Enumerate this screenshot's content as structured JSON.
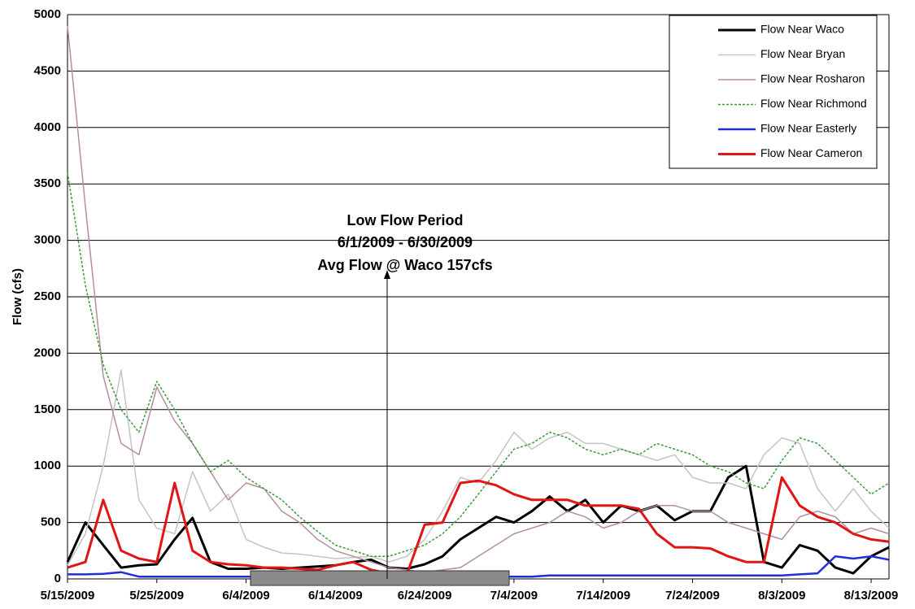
{
  "chart_data": {
    "type": "line",
    "y_label": "Flow (cfs)",
    "annotation": [
      "Low Flow Period",
      "6/1/2009 - 6/30/2009",
      "Avg Flow @ Waco 157cfs"
    ],
    "x": [
      "5/15/2009",
      "5/17/2009",
      "5/19/2009",
      "5/21/2009",
      "5/23/2009",
      "5/25/2009",
      "5/27/2009",
      "5/29/2009",
      "5/31/2009",
      "6/2/2009",
      "6/4/2009",
      "6/6/2009",
      "6/8/2009",
      "6/10/2009",
      "6/12/2009",
      "6/14/2009",
      "6/16/2009",
      "6/18/2009",
      "6/20/2009",
      "6/22/2009",
      "6/24/2009",
      "6/26/2009",
      "6/28/2009",
      "6/30/2009",
      "7/2/2009",
      "7/4/2009",
      "7/6/2009",
      "7/8/2009",
      "7/10/2009",
      "7/12/2009",
      "7/14/2009",
      "7/16/2009",
      "7/18/2009",
      "7/20/2009",
      "7/22/2009",
      "7/24/2009",
      "7/26/2009",
      "7/28/2009",
      "7/30/2009",
      "8/1/2009",
      "8/3/2009",
      "8/5/2009",
      "8/7/2009",
      "8/9/2009",
      "8/11/2009",
      "8/13/2009",
      "8/15/2009"
    ],
    "xlim": [
      "5/15/2009",
      "8/15/2009"
    ],
    "xticks": [
      "5/15/2009",
      "5/25/2009",
      "6/4/2009",
      "6/14/2009",
      "6/24/2009",
      "7/4/2009",
      "7/14/2009",
      "7/24/2009",
      "8/3/2009",
      "8/13/2009"
    ],
    "ylim": [
      0,
      5000
    ],
    "yticks": [
      0,
      500,
      1000,
      1500,
      2000,
      2500,
      3000,
      3500,
      4000,
      4500,
      5000
    ],
    "grid": true,
    "legend": "upper right",
    "series": [
      {
        "name": "Flow Near Waco",
        "color": "#000000",
        "width": 3,
        "dash": false,
        "values": [
          150,
          500,
          300,
          100,
          120,
          130,
          350,
          540,
          150,
          90,
          90,
          100,
          90,
          100,
          110,
          120,
          150,
          170,
          100,
          90,
          130,
          200,
          350,
          450,
          550,
          500,
          600,
          730,
          600,
          700,
          500,
          650,
          600,
          650,
          520,
          600,
          600,
          900,
          1000,
          150,
          100,
          300,
          250,
          100,
          50,
          200,
          280
        ]
      },
      {
        "name": "Flow Near Bryan",
        "color": "#c4c4c4",
        "width": 1.5,
        "dash": false,
        "values": [
          120,
          400,
          1000,
          1850,
          700,
          450,
          400,
          950,
          600,
          750,
          350,
          280,
          230,
          220,
          200,
          180,
          190,
          200,
          150,
          200,
          350,
          600,
          900,
          850,
          1050,
          1300,
          1150,
          1250,
          1300,
          1200,
          1200,
          1150,
          1100,
          1050,
          1100,
          900,
          850,
          850,
          800,
          1100,
          1250,
          1200,
          800,
          600,
          800,
          600,
          450
        ]
      },
      {
        "name": "Flow Near Rosharon",
        "color": "#b48e9e",
        "width": 1.5,
        "dash": false,
        "values": [
          4900,
          3300,
          1800,
          1200,
          1100,
          1700,
          1400,
          1200,
          950,
          700,
          850,
          800,
          600,
          500,
          350,
          250,
          200,
          150,
          100,
          80,
          60,
          80,
          100,
          200,
          300,
          400,
          450,
          500,
          600,
          550,
          450,
          500,
          600,
          650,
          650,
          600,
          600,
          500,
          450,
          400,
          350,
          550,
          600,
          550,
          400,
          450,
          400
        ]
      },
      {
        "name": "Flow Near Richmond",
        "color": "#3a9a3a",
        "width": 1.5,
        "dash": true,
        "values": [
          3600,
          2600,
          1900,
          1500,
          1300,
          1750,
          1500,
          1200,
          950,
          1050,
          900,
          800,
          700,
          550,
          420,
          300,
          250,
          200,
          200,
          250,
          300,
          400,
          550,
          750,
          950,
          1150,
          1200,
          1300,
          1250,
          1150,
          1100,
          1150,
          1100,
          1200,
          1150,
          1100,
          1000,
          950,
          850,
          800,
          1050,
          1250,
          1200,
          1050,
          900,
          750,
          850
        ]
      },
      {
        "name": "Flow Near Easterly",
        "color": "#1f2fd6",
        "width": 2.5,
        "dash": false,
        "values": [
          40,
          40,
          45,
          60,
          20,
          20,
          20,
          20,
          20,
          20,
          20,
          20,
          20,
          20,
          20,
          20,
          20,
          20,
          20,
          20,
          50,
          40,
          40,
          40,
          20,
          20,
          20,
          30,
          30,
          30,
          30,
          30,
          30,
          30,
          30,
          30,
          30,
          30,
          30,
          30,
          30,
          40,
          50,
          200,
          180,
          200,
          170
        ]
      },
      {
        "name": "Flow Near Cameron",
        "color": "#e01515",
        "width": 3,
        "dash": false,
        "values": [
          100,
          150,
          700,
          250,
          180,
          150,
          850,
          250,
          150,
          130,
          120,
          100,
          100,
          90,
          80,
          120,
          150,
          80,
          50,
          40,
          480,
          500,
          850,
          870,
          830,
          750,
          700,
          700,
          700,
          650,
          650,
          650,
          620,
          400,
          280,
          280,
          270,
          200,
          150,
          150,
          900,
          650,
          550,
          500,
          400,
          350,
          330
        ]
      }
    ]
  }
}
